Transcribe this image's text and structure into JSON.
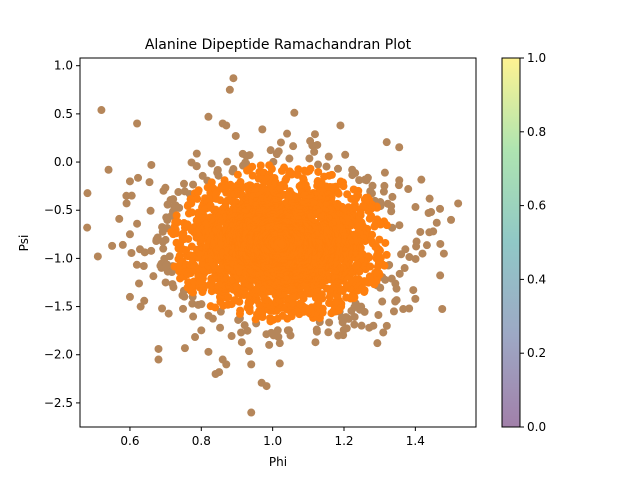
{
  "chart_data": {
    "type": "scatter",
    "title": "Alanine Dipeptide Ramachandran Plot",
    "xlabel": "Phi",
    "ylabel": "Psi",
    "xlim": [
      0.46,
      1.57
    ],
    "ylim": [
      -2.75,
      1.08
    ],
    "xticks": [
      0.6,
      0.8,
      1.0,
      1.2,
      1.4
    ],
    "xtick_labels": [
      "0.6",
      "0.8",
      "1.0",
      "1.2",
      "1.4"
    ],
    "yticks": [
      1.0,
      0.5,
      0.0,
      -0.5,
      -1.0,
      -1.5,
      -2.0,
      -2.5
    ],
    "ytick_labels": [
      "1.0",
      "0.5",
      "0.0",
      "−0.5",
      "−1.0",
      "−1.5",
      "−2.0",
      "−2.5"
    ],
    "colors": {
      "outer_points": "#b5865a",
      "core_points": "#ff7f0e",
      "axes": "#000000"
    },
    "cluster": {
      "center": [
        1.02,
        -0.85
      ],
      "phi_std": 0.135,
      "psi_std": 0.36,
      "n_points": 3000
    },
    "outliers": [
      [
        0.48,
        -0.68
      ],
      [
        0.51,
        -0.98
      ],
      [
        0.52,
        0.54
      ],
      [
        0.54,
        -0.08
      ],
      [
        0.55,
        -0.87
      ],
      [
        0.57,
        -0.59
      ],
      [
        0.58,
        -0.86
      ],
      [
        0.59,
        -0.35
      ],
      [
        0.6,
        -0.2
      ],
      [
        0.6,
        -1.4
      ],
      [
        0.6,
        -0.75
      ],
      [
        0.62,
        -0.64
      ],
      [
        0.63,
        -1.5
      ],
      [
        0.64,
        -1.44
      ],
      [
        0.62,
        0.4
      ],
      [
        0.66,
        -0.03
      ],
      [
        0.68,
        -1.94
      ],
      [
        0.68,
        -2.05
      ],
      [
        0.69,
        -1.52
      ],
      [
        0.7,
        -1.25
      ],
      [
        0.82,
        -1.97
      ],
      [
        0.84,
        -2.2
      ],
      [
        0.85,
        -2.18
      ],
      [
        0.86,
        -2.05
      ],
      [
        0.87,
        -2.1
      ],
      [
        0.82,
        0.47
      ],
      [
        0.86,
        0.4
      ],
      [
        0.88,
        0.75
      ],
      [
        0.89,
        0.87
      ],
      [
        0.87,
        0.38
      ],
      [
        0.94,
        -2.1
      ],
      [
        0.94,
        -2.6
      ],
      [
        1.02,
        -1.88
      ],
      [
        1.02,
        -2.09
      ],
      [
        1.05,
        -1.8
      ],
      [
        1.12,
        -1.87
      ],
      [
        1.19,
        0.38
      ],
      [
        1.32,
        -1.7
      ],
      [
        1.34,
        -1.55
      ],
      [
        1.37,
        -1.1
      ],
      [
        1.4,
        -1.42
      ],
      [
        1.42,
        -0.95
      ],
      [
        1.44,
        -0.38
      ],
      [
        1.46,
        -0.63
      ],
      [
        1.47,
        -0.85
      ],
      [
        1.48,
        -0.95
      ],
      [
        1.5,
        -0.6
      ],
      [
        1.52,
        -0.43
      ],
      [
        1.45,
        -0.72
      ],
      [
        1.38,
        -0.28
      ]
    ],
    "colorbar": {
      "ticks": [
        1.0,
        0.8,
        0.6,
        0.4,
        0.2,
        0.0
      ],
      "tick_labels": [
        "1.0",
        "0.8",
        "0.6",
        "0.4",
        "0.2",
        "0.0"
      ],
      "range": [
        0.0,
        1.0
      ],
      "colormap": [
        "#440154",
        "#3b528b",
        "#21908d",
        "#5dc962",
        "#fde725"
      ],
      "alpha": 0.5
    },
    "grid": false,
    "legend": "none"
  }
}
